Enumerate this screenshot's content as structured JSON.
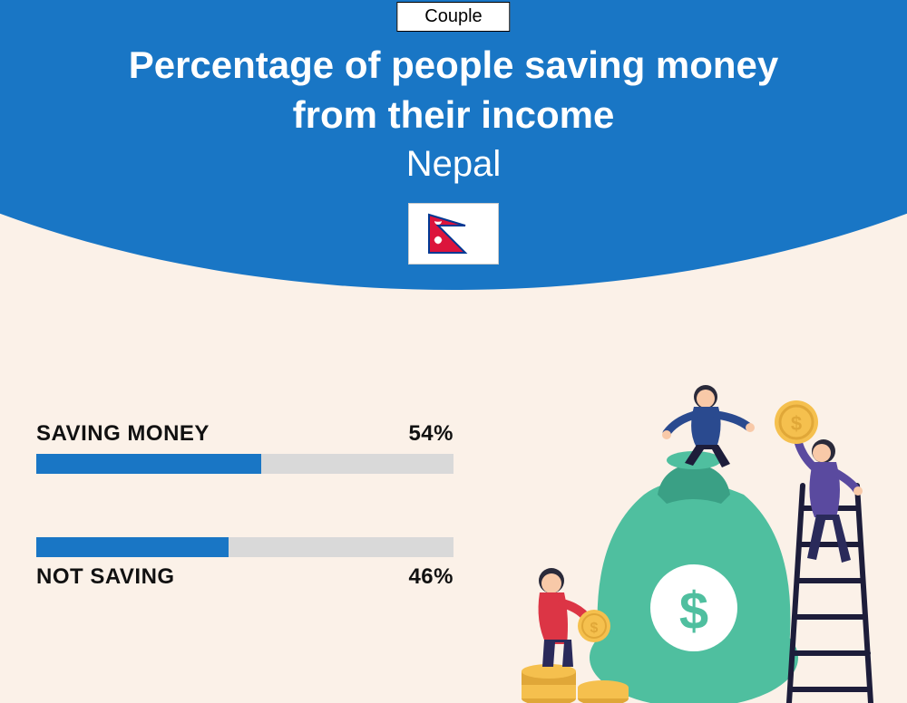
{
  "badge": {
    "label": "Couple"
  },
  "header": {
    "title_line1": "Percentage of people saving money",
    "title_line2": "from their income",
    "country": "Nepal",
    "arc_color": "#1976c5",
    "text_color": "#ffffff"
  },
  "bars": {
    "track_color": "#d9d9d9",
    "fill_color": "#1976c5",
    "saving": {
      "label": "SAVING MONEY",
      "percent_label": "54%",
      "percent_value": 54
    },
    "not_saving": {
      "label": "NOT SAVING",
      "percent_label": "46%",
      "percent_value": 46
    }
  },
  "illustration": {
    "bag_color": "#4fbf9f",
    "bag_dark": "#3aa085",
    "coin_color": "#f5c04e",
    "coin_dark": "#e0a738",
    "person1_body": "#2a4a8f",
    "person1_pants": "#1d1d3a",
    "person2_body": "#5a4a9f",
    "person2_pants": "#2a2a5a",
    "person3_body": "#dc3545",
    "person3_pants": "#2a2a5a",
    "skin": "#f8c9a8",
    "hair": "#2a2a3a",
    "ladder": "#1d1d3a",
    "dollar_bg": "#ffffff"
  },
  "background_color": "#fbf1e8"
}
